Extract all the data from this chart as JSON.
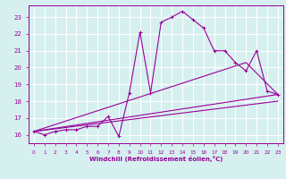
{
  "xlabel": "Windchill (Refroidissement éolien,°C)",
  "bg_color": "#d6f0f0",
  "grid_color": "#ffffff",
  "line_color": "#990099",
  "xlim": [
    -0.5,
    23.5
  ],
  "ylim": [
    15.5,
    23.7
  ],
  "xticks": [
    0,
    1,
    2,
    3,
    4,
    5,
    6,
    7,
    8,
    9,
    10,
    11,
    12,
    13,
    14,
    15,
    16,
    17,
    18,
    19,
    20,
    21,
    22,
    23
  ],
  "yticks": [
    16,
    17,
    18,
    19,
    20,
    21,
    22,
    23
  ],
  "curve1_x": [
    0,
    1,
    2,
    3,
    4,
    5,
    6,
    7,
    8,
    9,
    10,
    11,
    12,
    13,
    14,
    15,
    16,
    17,
    18,
    19,
    20,
    21,
    22,
    23
  ],
  "curve1_y": [
    16.2,
    16.0,
    16.2,
    16.3,
    16.3,
    16.5,
    16.5,
    17.1,
    15.9,
    18.5,
    22.1,
    18.5,
    22.7,
    23.0,
    23.35,
    22.85,
    22.35,
    21.0,
    21.0,
    20.3,
    19.8,
    21.0,
    18.6,
    18.4
  ],
  "curve2_x": [
    0,
    23
  ],
  "curve2_y": [
    16.2,
    18.4
  ],
  "curve3_x": [
    0,
    23
  ],
  "curve3_y": [
    16.2,
    18.0
  ],
  "curve4_x": [
    0,
    20,
    23
  ],
  "curve4_y": [
    16.2,
    20.3,
    18.4
  ]
}
